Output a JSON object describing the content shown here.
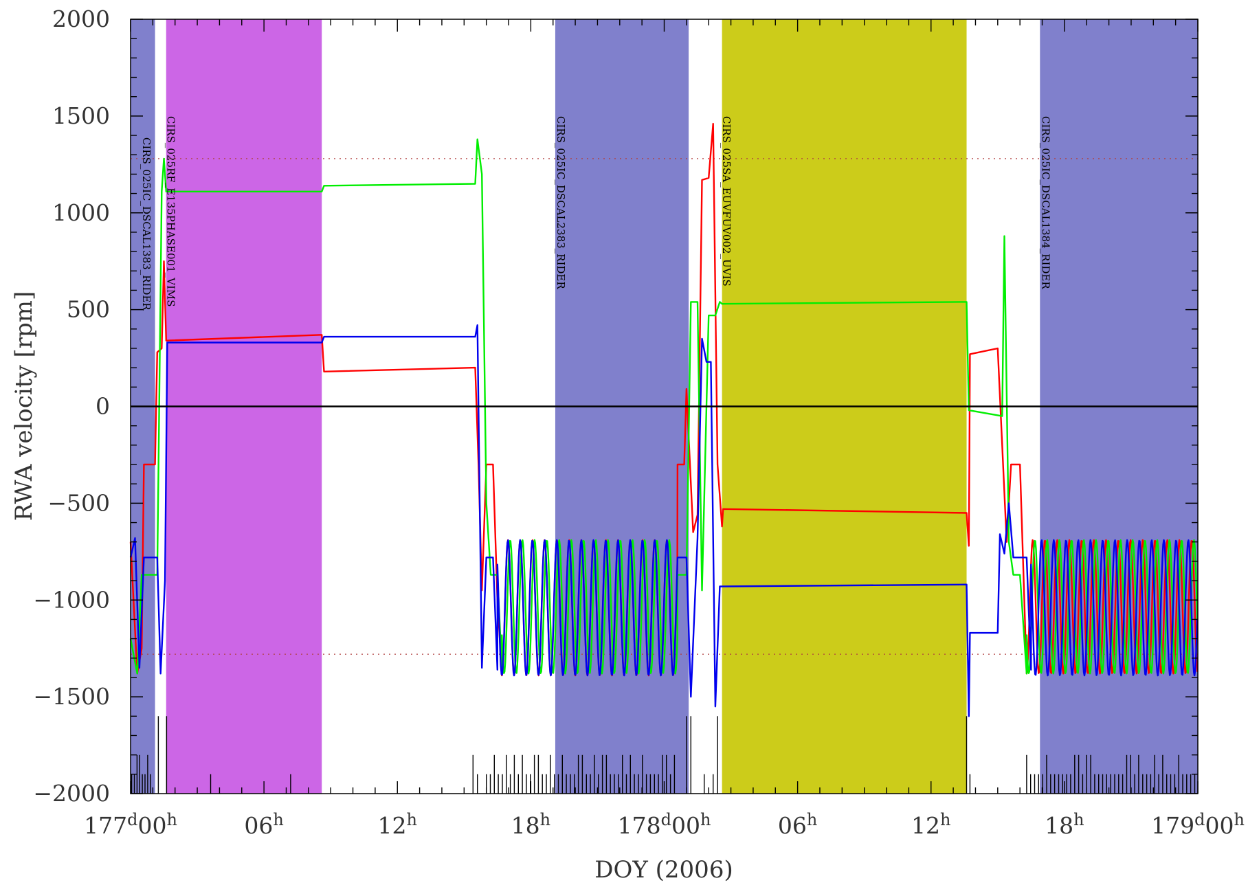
{
  "chart_data": {
    "type": "line",
    "xlabel": "DOY (2006)",
    "ylabel": "RWA velocity [rpm]",
    "xlim_hours": [
      0,
      48
    ],
    "ylim": [
      -2000,
      2000
    ],
    "yticks": [
      -2000,
      -1500,
      -1000,
      -500,
      0,
      500,
      1000,
      1500,
      2000
    ],
    "xticks": [
      {
        "h": 0,
        "main": "177",
        "sup1": "d",
        "sub": "00",
        "sup2": "h"
      },
      {
        "h": 6,
        "main": "06",
        "sup1": "",
        "sub": "",
        "sup2": "h"
      },
      {
        "h": 12,
        "main": "12",
        "sup1": "",
        "sub": "",
        "sup2": "h"
      },
      {
        "h": 18,
        "main": "18",
        "sup1": "",
        "sub": "",
        "sup2": "h"
      },
      {
        "h": 24,
        "main": "178",
        "sup1": "d",
        "sub": "00",
        "sup2": "h"
      },
      {
        "h": 30,
        "main": "06",
        "sup1": "",
        "sub": "",
        "sup2": "h"
      },
      {
        "h": 36,
        "main": "12",
        "sup1": "",
        "sub": "",
        "sup2": "h"
      },
      {
        "h": 42,
        "main": "18",
        "sup1": "",
        "sub": "",
        "sup2": "h"
      },
      {
        "h": 48,
        "main": "179",
        "sup1": "d",
        "sub": "00",
        "sup2": "h"
      }
    ],
    "reference_lines": [
      1280,
      -1280
    ],
    "colors": {
      "cirs": "#8080cc",
      "vims": "#cc66e6",
      "uvis": "#cccc1a",
      "red": "#ff0000",
      "green": "#00ee00",
      "blue": "#0000ee",
      "ref": "#b04040"
    },
    "bands": [
      {
        "start": 0.0,
        "end": 1.1,
        "color_key": "cirs"
      },
      {
        "start": 1.6,
        "end": 8.6,
        "color_key": "vims"
      },
      {
        "start": 19.1,
        "end": 25.1,
        "color_key": "cirs"
      },
      {
        "start": 26.6,
        "end": 37.6,
        "color_key": "uvis"
      },
      {
        "start": 40.9,
        "end": 48.0,
        "color_key": "cirs"
      }
    ],
    "annotations": [
      {
        "text": "CIRS_025IC_DSCAL1383_RIDER",
        "h": 0.55,
        "y_top": 1390
      },
      {
        "text": "CIRS_025RF_E135PHASE001_VIMS",
        "h": 1.65,
        "y_top": 1500
      },
      {
        "text": "CIRS_025IC_DSCAL2383_RIDER",
        "h": 19.2,
        "y_top": 1500
      },
      {
        "text": "CIRS_025SA_EUVFUV002_UVIS",
        "h": 26.65,
        "y_top": 1500
      },
      {
        "text": "CIRS_025IC_DSCAL1384_RIDER",
        "h": 41.0,
        "y_top": 1500
      }
    ],
    "series": [
      {
        "color_key": "red",
        "points": [
          [
            0,
            -700
          ],
          [
            0.3,
            -1380
          ],
          [
            0.5,
            -1250
          ],
          [
            0.6,
            -300
          ],
          [
            1.1,
            -300
          ],
          [
            1.2,
            280
          ],
          [
            1.4,
            300
          ],
          [
            1.5,
            750
          ],
          [
            1.6,
            340
          ],
          [
            8.6,
            370
          ],
          [
            8.7,
            180
          ],
          [
            15.5,
            200
          ],
          [
            15.65,
            -300
          ],
          [
            15.8,
            -950
          ],
          [
            16.0,
            -300
          ],
          [
            16.3,
            -300
          ],
          [
            16.5,
            -1000
          ],
          [
            16.7,
            -1380
          ]
        ],
        "osc": [
          16.7,
          24.6,
          -1390,
          -690,
          0.55,
          0.0
        ],
        "points2": [
          [
            24.6,
            -300
          ],
          [
            24.9,
            -300
          ],
          [
            25.0,
            90
          ],
          [
            25.3,
            -650
          ],
          [
            25.5,
            -560
          ],
          [
            25.7,
            1170
          ],
          [
            26.0,
            1180
          ],
          [
            26.2,
            1460
          ],
          [
            26.4,
            -300
          ],
          [
            26.6,
            -620
          ],
          [
            26.65,
            -530
          ],
          [
            37.6,
            -550
          ],
          [
            37.7,
            -720
          ],
          [
            37.75,
            270
          ],
          [
            39.0,
            300
          ],
          [
            39.2,
            -200
          ],
          [
            39.4,
            -700
          ],
          [
            39.6,
            -300
          ],
          [
            40.0,
            -300
          ],
          [
            40.3,
            -1380
          ]
        ],
        "osc2": [
          40.3,
          48.0,
          -1380,
          -690,
          0.55,
          0.0
        ]
      },
      {
        "color_key": "green",
        "points": [
          [
            0,
            -1200
          ],
          [
            0.3,
            -1380
          ],
          [
            0.5,
            -870
          ],
          [
            1.2,
            -870
          ],
          [
            1.4,
            1110
          ],
          [
            1.5,
            1280
          ],
          [
            1.6,
            1110
          ],
          [
            8.6,
            1110
          ],
          [
            8.7,
            1140
          ],
          [
            15.5,
            1150
          ],
          [
            15.6,
            1380
          ],
          [
            15.8,
            1200
          ],
          [
            16.0,
            -500
          ],
          [
            16.2,
            -870
          ],
          [
            16.5,
            -870
          ],
          [
            16.7,
            -1360
          ]
        ],
        "osc": [
          16.7,
          24.6,
          -1380,
          -690,
          0.55,
          0.18
        ],
        "points2": [
          [
            24.6,
            -870
          ],
          [
            25.0,
            -870
          ],
          [
            25.2,
            540
          ],
          [
            25.5,
            540
          ],
          [
            25.7,
            -950
          ],
          [
            26.0,
            470
          ],
          [
            26.3,
            470
          ],
          [
            26.5,
            540
          ],
          [
            26.6,
            530
          ],
          [
            37.6,
            540
          ],
          [
            37.7,
            -20
          ],
          [
            39.2,
            -50
          ],
          [
            39.3,
            880
          ],
          [
            39.5,
            -700
          ],
          [
            39.7,
            -870
          ],
          [
            40.0,
            -870
          ],
          [
            40.3,
            -1380
          ]
        ],
        "osc2": [
          40.3,
          48.0,
          -1380,
          -690,
          0.55,
          0.18
        ]
      },
      {
        "color_key": "blue",
        "points": [
          [
            0,
            -780
          ],
          [
            0.2,
            -680
          ],
          [
            0.4,
            -1350
          ],
          [
            0.6,
            -780
          ],
          [
            1.2,
            -780
          ],
          [
            1.35,
            -1380
          ],
          [
            1.55,
            -900
          ],
          [
            1.65,
            330
          ],
          [
            8.6,
            330
          ],
          [
            8.7,
            360
          ],
          [
            15.5,
            360
          ],
          [
            15.6,
            420
          ],
          [
            15.8,
            -1350
          ],
          [
            16.0,
            -780
          ],
          [
            16.3,
            -780
          ],
          [
            16.5,
            -1360
          ]
        ],
        "osc": [
          16.5,
          24.6,
          -1390,
          -690,
          0.55,
          0.36
        ],
        "points2": [
          [
            24.6,
            -780
          ],
          [
            25.0,
            -780
          ],
          [
            25.2,
            -1500
          ],
          [
            25.5,
            -680
          ],
          [
            25.7,
            350
          ],
          [
            25.9,
            230
          ],
          [
            26.1,
            230
          ],
          [
            26.3,
            -1550
          ],
          [
            26.5,
            -930
          ],
          [
            37.6,
            -920
          ],
          [
            37.7,
            -1600
          ],
          [
            37.75,
            -1170
          ],
          [
            39.0,
            -1170
          ],
          [
            39.1,
            -660
          ],
          [
            39.3,
            -760
          ],
          [
            39.5,
            -500
          ],
          [
            39.7,
            -780
          ],
          [
            40.3,
            -780
          ],
          [
            40.5,
            -1360
          ]
        ],
        "osc2": [
          40.5,
          48.0,
          -1390,
          -690,
          0.55,
          0.36
        ]
      }
    ]
  }
}
